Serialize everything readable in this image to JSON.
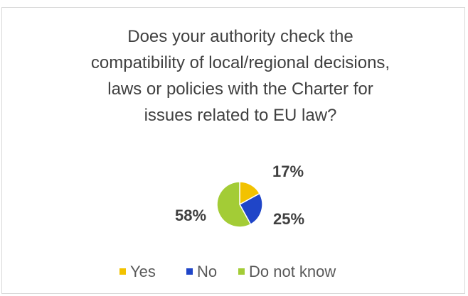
{
  "chart_data": {
    "type": "pie",
    "title": "Does your authority check the compatibility of local/regional decisions, laws or policies with the Charter for issues related to EU law?",
    "categories": [
      "Yes",
      "No",
      "Do not know"
    ],
    "values": [
      17,
      25,
      58
    ],
    "value_labels": [
      "17%",
      "25%",
      "58%"
    ],
    "colors": [
      "#f2c200",
      "#1f45c8",
      "#a3cc36"
    ],
    "legend": "bottom"
  }
}
